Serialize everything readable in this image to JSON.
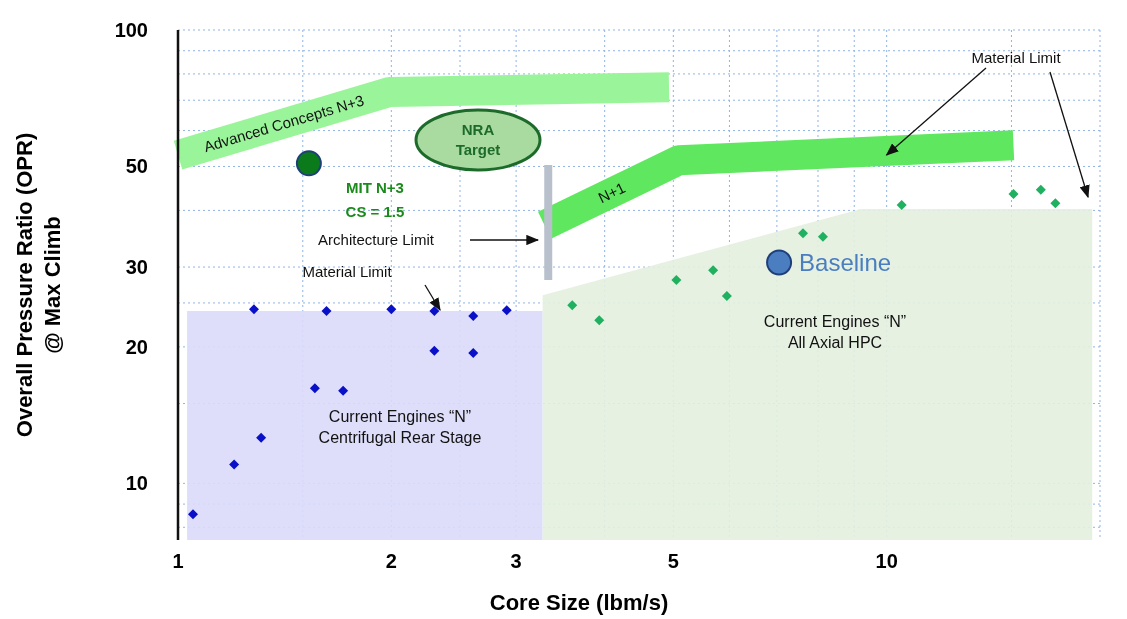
{
  "chart_data": {
    "type": "scatter",
    "xlabel": "Core Size  (lbm/s)",
    "ylabel": "Overall Pressure Ratio (OPR)\n@ Max Climb",
    "log": "xy",
    "grid": true,
    "xlim": [
      1,
      20
    ],
    "xticks": [
      1,
      {
        "value": 1.5,
        "label": null
      },
      2,
      {
        "value": 2.5,
        "label": null
      },
      3,
      {
        "value": 4,
        "label": null
      },
      5,
      {
        "value": 6,
        "label": null
      },
      {
        "value": 7,
        "label": null
      },
      {
        "value": 8,
        "label": null
      },
      {
        "value": 9,
        "label": null
      },
      10,
      {
        "value": 15,
        "label": null
      },
      {
        "value": 20,
        "label": null
      }
    ],
    "ylim": [
      7.5,
      100
    ],
    "yticks": [
      {
        "value": 8,
        "label": null
      },
      {
        "value": 9,
        "label": null
      },
      10,
      {
        "value": 15,
        "label": null
      },
      20,
      {
        "value": 25,
        "label": null
      },
      30,
      {
        "value": 40,
        "label": null
      },
      50,
      {
        "value": 60,
        "label": null
      },
      {
        "value": 70,
        "label": null
      },
      {
        "value": 80,
        "label": null
      },
      {
        "value": 90,
        "label": null
      },
      100
    ],
    "series": [
      {
        "type": "area",
        "color": "#dadafa",
        "x": [
          1.03,
          3.27
        ],
        "values": [
          24,
          24
        ]
      },
      {
        "type": "area",
        "color": "#e3efdf",
        "x": [
          3.27,
          9.2,
          19.5
        ],
        "values": [
          26,
          40.3,
          40.3
        ]
      },
      {
        "type": "line",
        "name": "Advanced Concepts N+3",
        "color": "#9af59a",
        "x": [
          1.0,
          1.99,
          4.93
        ],
        "values": [
          53,
          73,
          74.8
        ]
      },
      {
        "type": "line",
        "name": "N+1",
        "color": "#5fe85f",
        "x": [
          3.29,
          5.09,
          15.1
        ],
        "values": [
          37.1,
          51.6,
          55.7
        ]
      },
      {
        "type": "line",
        "color": "#b8c0cc",
        "x": [
          3.33,
          3.33
        ],
        "values": [
          50.4,
          28.1
        ]
      },
      {
        "marker": "diamond",
        "color": "#0a10c8",
        "x": [
          1.05,
          1.2,
          1.31,
          1.28,
          1.56,
          1.71,
          1.62,
          2.0,
          2.3,
          2.3,
          2.61,
          2.61,
          2.91
        ],
        "values": [
          8.55,
          11,
          12.6,
          24.2,
          16.2,
          16,
          24,
          24.2,
          24,
          19.6,
          23.4,
          19.4,
          24.1
        ]
      },
      {
        "marker": "diamond",
        "color": "#1fb060",
        "x": [
          3.6,
          3.93,
          5.05,
          5.69,
          5.95,
          7.62,
          8.13,
          10.5,
          15.1,
          16.5,
          17.3
        ],
        "values": [
          24.7,
          22.9,
          28.1,
          29.5,
          25.9,
          35.6,
          35,
          41.1,
          43.5,
          44.4,
          41.5
        ]
      },
      {
        "marker": "circle",
        "color": "#0b7a1a",
        "x": [
          1.53
        ],
        "values": [
          50.8
        ]
      },
      {
        "marker": "circle",
        "name": "Baseline",
        "color": "#4a7ec0",
        "x": [
          7.05
        ],
        "values": [
          30.7
        ]
      }
    ],
    "annotations": [
      "Material Limit",
      "Architecture Limit",
      {
        "text": "Material Limit",
        "x": 10,
        "y": 53
      },
      "NRA\nTarget",
      "MIT N+3",
      "CS = 1.5",
      "Current Engines “N”\nCentrifugal Rear Stage",
      "Current Engines “N”\nAll Axial HPC"
    ]
  }
}
